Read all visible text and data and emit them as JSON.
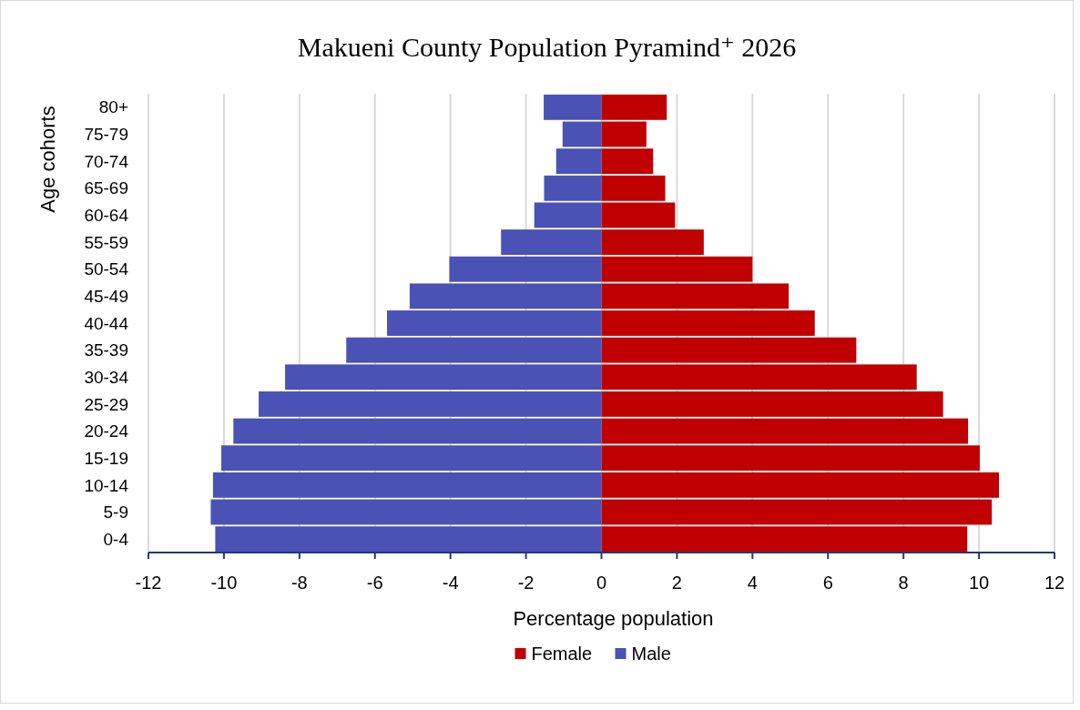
{
  "chart_data": {
    "type": "bar",
    "orientation": "horizontal",
    "title": "Makueni County Population Pyramind⁺ 2026",
    "xlabel": "Percentage population",
    "ylabel": "Age cohorts",
    "categories": [
      "80+",
      "75-79",
      "70-74",
      "65-69",
      "60-64",
      "55-59",
      "50-54",
      "45-49",
      "40-44",
      "35-39",
      "30-34",
      "25-29",
      "20-24",
      "15-19",
      "10-14",
      "5-9",
      "0-4"
    ],
    "series": [
      {
        "name": "Female",
        "color": "#c00000",
        "values": [
          1.73,
          1.19,
          1.37,
          1.69,
          1.95,
          2.71,
          4.0,
          4.96,
          5.65,
          6.75,
          8.35,
          9.05,
          9.71,
          10.02,
          10.53,
          10.34,
          9.69
        ]
      },
      {
        "name": "Male",
        "color": "#4a52b5",
        "values": [
          -1.53,
          -1.03,
          -1.2,
          -1.52,
          -1.78,
          -2.66,
          -4.03,
          -5.08,
          -5.68,
          -6.76,
          -8.38,
          -9.08,
          -9.75,
          -10.07,
          -10.29,
          -10.35,
          -10.23
        ]
      }
    ],
    "xlim": [
      -12,
      12
    ],
    "xticks": [
      -12,
      -10,
      -8,
      -6,
      -4,
      -2,
      0,
      2,
      4,
      6,
      8,
      10,
      12
    ],
    "grid": "x",
    "legend": "bottom",
    "stacked": true
  }
}
